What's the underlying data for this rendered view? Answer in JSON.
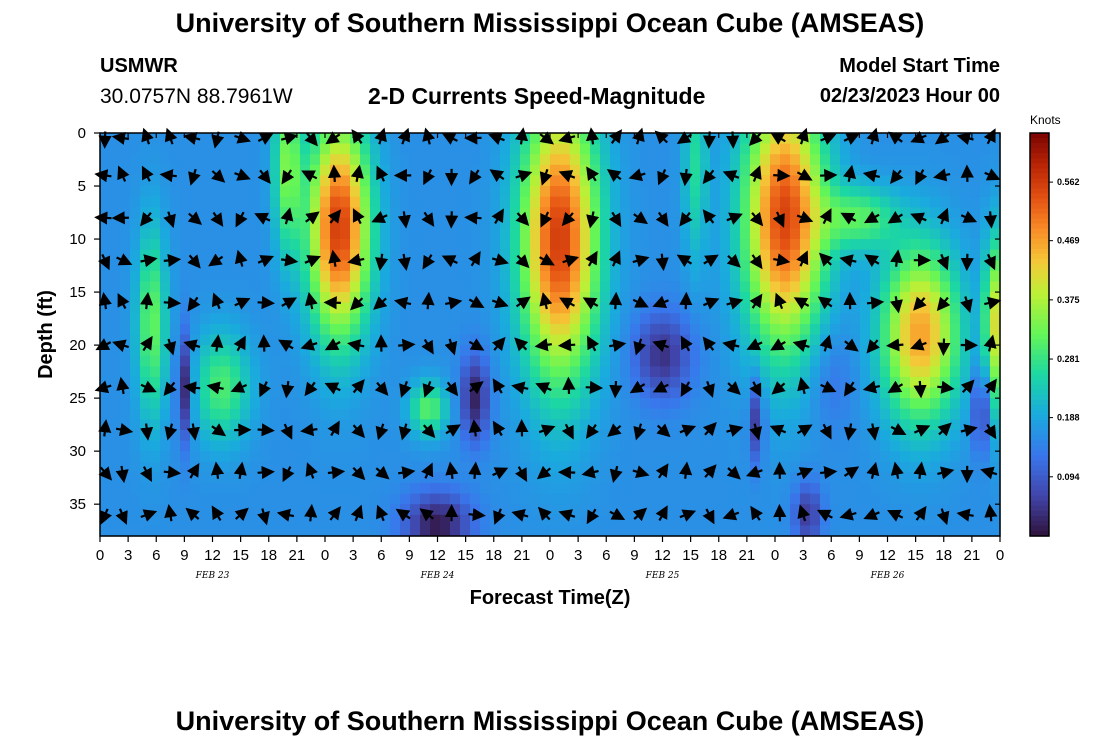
{
  "header": {
    "title": "University of Southern Mississippi Ocean Cube (AMSEAS)",
    "station": "USMWR",
    "coords": "30.0757N  88.7961W",
    "product": "2-D Currents Speed-Magnitude",
    "start_label": "Model Start Time",
    "start_value": "02/23/2023 Hour 00"
  },
  "footer": {
    "title": "University of Southern Mississippi Ocean Cube (AMSEAS)"
  },
  "chart_data": {
    "type": "heatmap",
    "title": "2-D Currents Speed-Magnitude",
    "xlabel": "Forecast Time(Z)",
    "ylabel": "Depth (ft)",
    "x_unit": "forecast hour from 02/23/2023 00Z",
    "xlim": [
      0,
      96
    ],
    "ylim": [
      0,
      38
    ],
    "y_inverted": true,
    "x_ticks": [
      0,
      3,
      6,
      9,
      12,
      15,
      18,
      21,
      24,
      27,
      30,
      33,
      36,
      39,
      42,
      45,
      48,
      51,
      54,
      57,
      60,
      63,
      66,
      69,
      72,
      75,
      78,
      81,
      84,
      87,
      90,
      93,
      96
    ],
    "x_tick_labels": [
      "0",
      "3",
      "6",
      "9",
      "12",
      "15",
      "18",
      "21",
      "0",
      "3",
      "6",
      "9",
      "12",
      "15",
      "18",
      "21",
      "0",
      "3",
      "6",
      "9",
      "12",
      "15",
      "18",
      "21",
      "0",
      "3",
      "6",
      "9",
      "12",
      "15",
      "18",
      "21",
      "0"
    ],
    "y_ticks": [
      0,
      5,
      10,
      15,
      20,
      25,
      30,
      35
    ],
    "y_tick_labels": [
      "0",
      "5",
      "10",
      "15",
      "20",
      "25",
      "30",
      "35"
    ],
    "date_labels": [
      {
        "hour": 12,
        "text": "FEB 23"
      },
      {
        "hour": 36,
        "text": "FEB 24"
      },
      {
        "hour": 60,
        "text": "FEB 25"
      },
      {
        "hour": 84,
        "text": "FEB 26"
      }
    ],
    "colorbar": {
      "unit": "Knots",
      "min": 0.0,
      "max": 0.64,
      "ticks": [
        0.094,
        0.188,
        0.281,
        0.375,
        0.469,
        0.562
      ],
      "tick_labels": [
        "0.094",
        "0.188",
        "0.281",
        "0.375",
        "0.469",
        "0.562"
      ]
    },
    "speed_features": [
      {
        "hour": 25.5,
        "depth": 9,
        "speed": 0.56,
        "hour_spread": 3.2,
        "depth_spread": 10,
        "note": "strong current core Feb 24 early"
      },
      {
        "hour": 49,
        "depth": 10,
        "speed": 0.56,
        "hour_spread": 4.0,
        "depth_spread": 13,
        "note": "strong current core Feb 25 early"
      },
      {
        "hour": 73,
        "depth": 8,
        "speed": 0.55,
        "hour_spread": 4.2,
        "depth_spread": 12,
        "note": "strong current core Feb 26 early"
      },
      {
        "hour": 87.5,
        "depth": 19,
        "speed": 0.47,
        "hour_spread": 4.0,
        "depth_spread": 8,
        "note": "mid-depth core Feb 26"
      },
      {
        "hour": 95.5,
        "depth": 18,
        "speed": 0.4,
        "hour_spread": 1.2,
        "depth_spread": 8,
        "note": "core at end of period"
      },
      {
        "hour": 5.5,
        "depth": 18,
        "speed": 0.32,
        "hour_spread": 1.6,
        "depth_spread": 9,
        "note": "moderate band"
      },
      {
        "hour": 13,
        "depth": 24,
        "speed": 0.3,
        "hour_spread": 3.0,
        "depth_spread": 5,
        "note": "moderate band"
      },
      {
        "hour": 20,
        "depth": 3,
        "speed": 0.33,
        "hour_spread": 1.5,
        "depth_spread": 8,
        "note": "moderate band"
      },
      {
        "hour": 35,
        "depth": 26,
        "speed": 0.31,
        "hour_spread": 2.0,
        "depth_spread": 2.5,
        "note": "moderate pocket"
      },
      {
        "hour": 81,
        "depth": 8,
        "speed": 0.3,
        "hour_spread": 4.0,
        "depth_spread": 3,
        "note": "moderate band"
      },
      {
        "hour": 63.5,
        "depth": 3,
        "speed": 0.26,
        "hour_spread": 1.3,
        "depth_spread": 9,
        "note": "moderate band"
      },
      {
        "hour": 9,
        "depth": 24,
        "speed": 0.01,
        "hour_spread": 0.8,
        "depth_spread": 5,
        "note": "weak pocket"
      },
      {
        "hour": 36,
        "depth": 37,
        "speed": 0.01,
        "hour_spread": 3.5,
        "depth_spread": 3,
        "note": "weak pocket"
      },
      {
        "hour": 40,
        "depth": 25,
        "speed": 0.02,
        "hour_spread": 1.5,
        "depth_spread": 4,
        "note": "weak pocket"
      },
      {
        "hour": 60,
        "depth": 21,
        "speed": 0.04,
        "hour_spread": 3.0,
        "depth_spread": 4,
        "note": "weak pocket"
      },
      {
        "hour": 70,
        "depth": 27,
        "speed": 0.04,
        "hour_spread": 0.8,
        "depth_spread": 4,
        "note": "weak pocket"
      },
      {
        "hour": 75.5,
        "depth": 36,
        "speed": 0.05,
        "hour_spread": 1.5,
        "depth_spread": 3,
        "note": "weak pocket"
      },
      {
        "hour": 94,
        "depth": 26,
        "speed": 0.04,
        "hour_spread": 0.9,
        "depth_spread": 4,
        "note": "weak pocket"
      },
      {
        "hour": 78,
        "depth": 23,
        "speed": 0.12,
        "hour_spread": 2.5,
        "depth_spread": 5,
        "note": "weak band"
      }
    ],
    "background_speed": 0.16,
    "arrow_hours": [
      0,
      2.4,
      5,
      7.5,
      10,
      12.5,
      15,
      17.5,
      20,
      22.5,
      25,
      27.5,
      30,
      32.5,
      35,
      37.5,
      40,
      42.5,
      45,
      47.5,
      50,
      52.5,
      55,
      57.5,
      60,
      62.5,
      65,
      67.5,
      70,
      72.5,
      75,
      77.5,
      80,
      82.5,
      85,
      87.5,
      90,
      92.5,
      95
    ],
    "arrow_depths": [
      0,
      4,
      8,
      12,
      16,
      20,
      24,
      28,
      32,
      36
    ]
  }
}
